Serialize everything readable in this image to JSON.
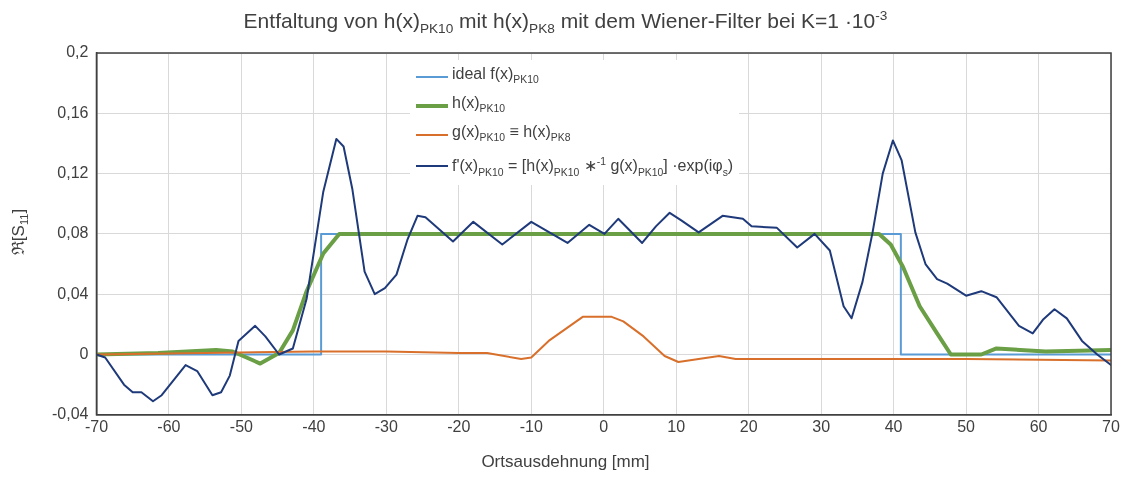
{
  "chart_data": {
    "type": "line",
    "title": "Entfaltung von h(x)$_{PK10}$ mit h(x)$_{PK8}$ mit dem Wiener-Filter bei K=1 ·10$^{-3}$",
    "xlabel": "Ortsausdehnung [mm]",
    "ylabel": "ℜ[S$_{11}$]",
    "xlim": [
      -70,
      70
    ],
    "xticks": [
      -70,
      -60,
      -50,
      -40,
      -30,
      -20,
      -10,
      0,
      10,
      20,
      30,
      40,
      50,
      60,
      70
    ],
    "ylim": [
      -0.04,
      0.2
    ],
    "yticks": [
      {
        "value": -0.04,
        "label": "-0,04"
      },
      {
        "value": 0,
        "label": "0"
      },
      {
        "value": 0.04,
        "label": "0,04"
      },
      {
        "value": 0.08,
        "label": "0,08"
      },
      {
        "value": 0.12,
        "label": "0,12"
      },
      {
        "value": 0.16,
        "label": "0,16"
      },
      {
        "value": 0.2,
        "label": "0,2"
      }
    ],
    "grid": true,
    "legend": "top",
    "marker": "none",
    "line_style": "solid",
    "series": [
      {
        "name": "ideal f(x)$_{PK10}$",
        "color": "#5b9bd5",
        "x": [
          -70,
          -39,
          -39,
          41,
          41,
          70
        ],
        "values": [
          0,
          0,
          0.08,
          0.08,
          0,
          0
        ]
      },
      {
        "name": "h(x)$_{PK10}$",
        "color": "#6a9f45",
        "x": [
          -70,
          -61.5,
          -53.5,
          -51.2,
          -47.4,
          -44.8,
          -42.9,
          -41,
          -38.7,
          -36.5,
          -30,
          -20,
          -10,
          0,
          10,
          20,
          30,
          38,
          39.6,
          41.3,
          43.6,
          46,
          47.9,
          52.1,
          54.2,
          61,
          70
        ],
        "values": [
          0,
          0.001,
          0.003,
          0.002,
          -0.006,
          0.001,
          0.016,
          0.042,
          0.067,
          0.08,
          0.08,
          0.08,
          0.08,
          0.08,
          0.08,
          0.08,
          0.08,
          0.08,
          0.073,
          0.058,
          0.032,
          0.014,
          0,
          0,
          0.004,
          0.002,
          0.003
        ]
      },
      {
        "name": "g(x)$_{PK10}$ ≡ h(x)$_{PK8}$",
        "color": "#d8702c",
        "x": [
          -70,
          -55,
          -40,
          -30,
          -20,
          -16.1,
          -11.4,
          -10,
          -7.6,
          -2.9,
          1.1,
          2.7,
          5.5,
          8.4,
          10.3,
          13.1,
          15.9,
          18.2,
          29.1,
          50,
          70
        ],
        "values": [
          0,
          0.001,
          0.002,
          0.002,
          0.001,
          0.001,
          -0.003,
          -0.002,
          0.009,
          0.025,
          0.025,
          0.022,
          0.012,
          -0.001,
          -0.005,
          -0.003,
          -0.001,
          -0.003,
          -0.003,
          -0.003,
          -0.004
        ]
      },
      {
        "name": "f'(x)$_{PK10}$ = [h(x)$_{PK10}$ ∗$^{-1}$ g(x)$_{PK10}$] ·exp(iφ$_{s}$)",
        "color": "#1f3a7a",
        "x": [
          -70,
          -68.8,
          -66.2,
          -65,
          -63.8,
          -62.2,
          -61,
          -57.7,
          -56.1,
          -54,
          -52.8,
          -51.6,
          -50.4,
          -48.1,
          -46.7,
          -44.8,
          -42.9,
          -41,
          -38.7,
          -36.9,
          -35.9,
          -34.7,
          -33,
          -31.6,
          -30.2,
          -28.6,
          -27.1,
          -25.7,
          -24.6,
          -20.8,
          -18,
          -14,
          -10,
          -5,
          -2,
          0.1,
          2,
          5.3,
          7.2,
          9.1,
          10.7,
          13.1,
          16.4,
          19.2,
          20.4,
          23.9,
          26.7,
          29.1,
          31.2,
          33.1,
          34.2,
          35.7,
          37.1,
          38.5,
          39.9,
          41.1,
          43,
          44.4,
          46,
          47.4,
          50,
          52.1,
          54.2,
          57.3,
          59.2,
          60.6,
          62.2,
          63.9,
          66,
          68.1,
          70
        ],
        "values": [
          0,
          -0.002,
          -0.02,
          -0.025,
          -0.025,
          -0.031,
          -0.027,
          -0.007,
          -0.011,
          -0.027,
          -0.025,
          -0.014,
          0.009,
          0.019,
          0.012,
          0,
          0.004,
          0.037,
          0.108,
          0.143,
          0.138,
          0.11,
          0.055,
          0.04,
          0.044,
          0.053,
          0.076,
          0.092,
          0.091,
          0.075,
          0.088,
          0.073,
          0.088,
          0.074,
          0.086,
          0.08,
          0.09,
          0.074,
          0.085,
          0.094,
          0.089,
          0.081,
          0.092,
          0.09,
          0.085,
          0.084,
          0.071,
          0.08,
          0.069,
          0.032,
          0.024,
          0.048,
          0.081,
          0.12,
          0.142,
          0.129,
          0.081,
          0.06,
          0.05,
          0.047,
          0.039,
          0.042,
          0.038,
          0.019,
          0.014,
          0.023,
          0.03,
          0.024,
          0.009,
          0,
          -0.007
        ]
      }
    ]
  }
}
